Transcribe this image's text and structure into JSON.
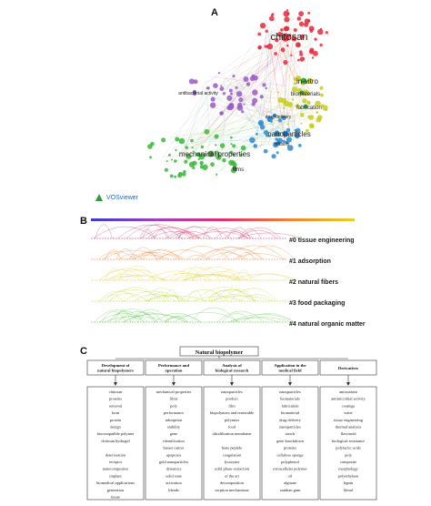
{
  "panel_a": {
    "letter": "A",
    "brand": "VOSviewer",
    "nodes": [
      {
        "label": "chitosan",
        "color": "#e8283c",
        "size": "big"
      },
      {
        "label": "in-vitro",
        "color": "#2a9a3a",
        "size": "mid"
      },
      {
        "label": "biomaterials",
        "color": "#2a9a3a",
        "size": "small"
      },
      {
        "label": "fabrication",
        "color": "#2a9a3a",
        "size": "small"
      },
      {
        "label": "nanoparticles",
        "color": "#1a6fb0",
        "size": "mid"
      },
      {
        "label": "mechanical properties",
        "color": "#2a8a2a",
        "size": "mid"
      },
      {
        "label": "films",
        "color": "#2a8a2a",
        "size": "small"
      },
      {
        "label": "antibacterial activity",
        "color": "#7a4ab0",
        "size": "small"
      },
      {
        "label": "drug delivery",
        "color": "#1a6fb0",
        "size": "small"
      },
      {
        "label": "stability",
        "color": "#1a6fb0",
        "size": "small"
      }
    ]
  },
  "panel_b": {
    "letter": "B",
    "clusters": [
      {
        "label": "#0 tissue engineering",
        "color": "#d8245a"
      },
      {
        "label": "#1 adsorption",
        "color": "#f07a2a"
      },
      {
        "label": "#2 natural fibers",
        "color": "#e0cc20"
      },
      {
        "label": "#3 food packaging",
        "color": "#b8d420"
      },
      {
        "label": "#4 natural organic matter",
        "color": "#52c83a"
      }
    ],
    "gradient": [
      "#3a3ad0",
      "#a040c0",
      "#e03070",
      "#f08030",
      "#e8d020"
    ]
  },
  "panel_c": {
    "letter": "C",
    "root": "Natural biopolymer",
    "columns": [
      {
        "header": "Development of natural biopolymers",
        "items": [
          "chitosan",
          "proteins",
          "removal",
          "form",
          "protein",
          "design",
          "biocompatible polymer",
          "chitosan hydrogel",
          "",
          "deterioration",
          "receptor",
          "nanocomposites",
          "implant",
          "biomedical applications",
          "generation",
          "tissue"
        ]
      },
      {
        "header": "Performance and operation",
        "items": [
          "mechanical properties",
          "films",
          "poly",
          "performance",
          "adsorption",
          "stability",
          "gene",
          "identification",
          "breast cancer",
          "apoptosis",
          "gold nanoparticles",
          "dynamics",
          "solid state",
          "activation",
          "blends"
        ]
      },
      {
        "header": "Analysis of biological research",
        "items": [
          "nanoparticles",
          "product",
          "film",
          "biopolymers and renewable",
          "polymers",
          "food",
          "ultrafiltration membrane",
          "",
          "bone peptide",
          "coagulation",
          "lysozyme",
          "solid phase extraction",
          "of the art",
          "decomposition",
          "sorption mechanisms"
        ]
      },
      {
        "header": "Application in the medical field",
        "items": [
          "nanoparticles",
          "biomaterials",
          "fabrication",
          "biomaterial",
          "drug delivery",
          "nanoparticles",
          "starch",
          "gene knockdown",
          "proteins",
          "cellulose sponge",
          "polyphenol",
          "extracellular polymer",
          "oil",
          "alginate",
          "xanthan gum"
        ]
      },
      {
        "header": "Derivatives",
        "items": [
          "antioxidant",
          "antimicrobial activity",
          "coatings",
          "water",
          "tissue engineering",
          "thermal analysis",
          "flavonoid",
          "biological resistance",
          "polylactic acids",
          "poly",
          "composite",
          "morphology",
          "polyethylene",
          "lignin",
          "blend"
        ]
      }
    ]
  }
}
